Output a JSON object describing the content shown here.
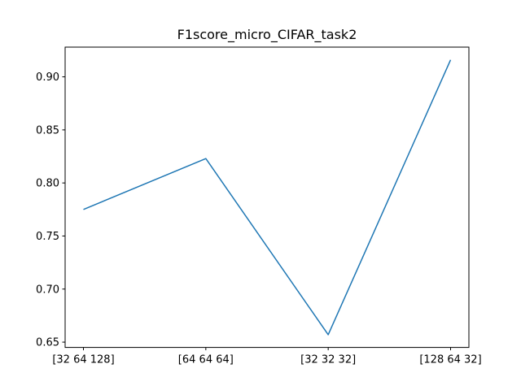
{
  "chart_data": {
    "type": "line",
    "title": "F1score_micro_CIFAR_task2",
    "xlabel": "",
    "ylabel": "",
    "categories": [
      "[32 64 128]",
      "[64 64 64]",
      "[32 32 32]",
      "[128 64 32]"
    ],
    "series": [
      {
        "values": [
          0.775,
          0.823,
          0.657,
          0.916
        ],
        "color": "#1f77b4"
      }
    ],
    "ylim": [
      0.645,
      0.928
    ],
    "yticks": [
      0.65,
      0.7,
      0.75,
      0.8,
      0.85,
      0.9
    ],
    "ytick_labels": [
      "0.65",
      "0.70",
      "0.75",
      "0.80",
      "0.85",
      "0.90"
    ],
    "grid": false,
    "legend": "none"
  }
}
